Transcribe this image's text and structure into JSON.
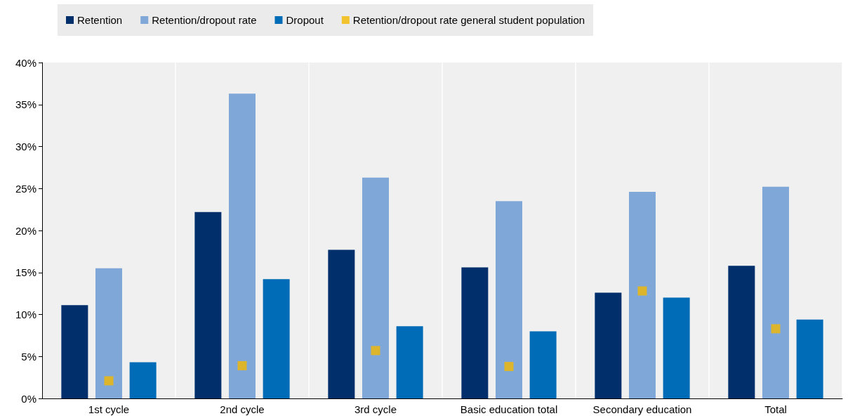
{
  "chart_data": {
    "type": "bar",
    "categories": [
      "1st cycle",
      "2nd cycle",
      "3rd cycle",
      "Basic education total",
      "Secondary education",
      "Total"
    ],
    "series": [
      {
        "name": "Retention",
        "color": "#002f6c",
        "values": [
          11.1,
          22.2,
          17.7,
          15.6,
          12.6,
          15.8
        ]
      },
      {
        "name": "Retention/dropout rate",
        "color": "#7fa8d9",
        "values": [
          15.5,
          36.3,
          26.3,
          23.5,
          24.6,
          25.2
        ]
      },
      {
        "name": "Dropout",
        "color": "#006bb6",
        "values": [
          4.3,
          14.2,
          8.6,
          8.0,
          12.0,
          9.4
        ]
      },
      {
        "name": "Retention/dropout rate general student population",
        "type": "scatter",
        "marker": "square",
        "color": "#f5b800",
        "x": [
          "1st cycle",
          "2nd cycle",
          "3rd cycle",
          "Basic education total",
          "Secondary education",
          "Total"
        ],
        "values": [
          2.1,
          3.9,
          5.7,
          3.8,
          12.8,
          8.3
        ]
      }
    ],
    "ylim": [
      0,
      40
    ],
    "yticks": [
      {
        "value": 0,
        "label": "0%"
      },
      {
        "value": 5,
        "label": "5%"
      },
      {
        "value": 10,
        "label": "10%"
      },
      {
        "value": 15,
        "label": "15%"
      },
      {
        "value": 20,
        "label": "20%"
      },
      {
        "value": 25,
        "label": "25%"
      },
      {
        "value": 30,
        "label": "30%"
      },
      {
        "value": 35,
        "label": "35%"
      },
      {
        "value": 40,
        "label": "40%"
      }
    ],
    "grid": "x",
    "legend": "top"
  }
}
